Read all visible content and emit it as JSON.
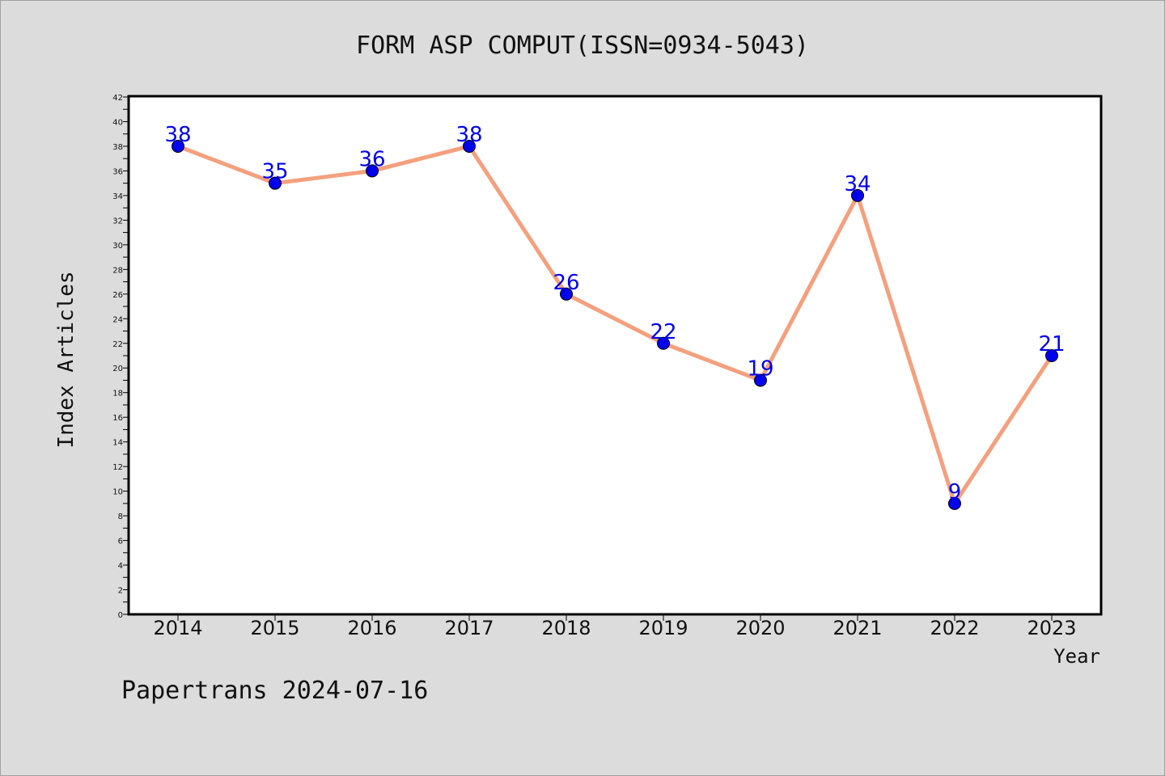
{
  "chart_data": {
    "type": "line",
    "title": "FORM ASP COMPUT(ISSN=0934-5043)",
    "xlabel": "Year",
    "ylabel": "Index Articles",
    "categories": [
      "2014",
      "2015",
      "2016",
      "2017",
      "2018",
      "2019",
      "2020",
      "2021",
      "2022",
      "2023"
    ],
    "values": [
      38,
      35,
      36,
      38,
      26,
      22,
      19,
      34,
      9,
      21
    ],
    "ylim": [
      0,
      42
    ],
    "ytick_step": 2,
    "grid": false,
    "line_color": "#f4a07e",
    "marker_color": "#0000ee",
    "label_color": "#0000ee"
  },
  "footer": {
    "watermark": "Papertrans 2024-07-16"
  }
}
